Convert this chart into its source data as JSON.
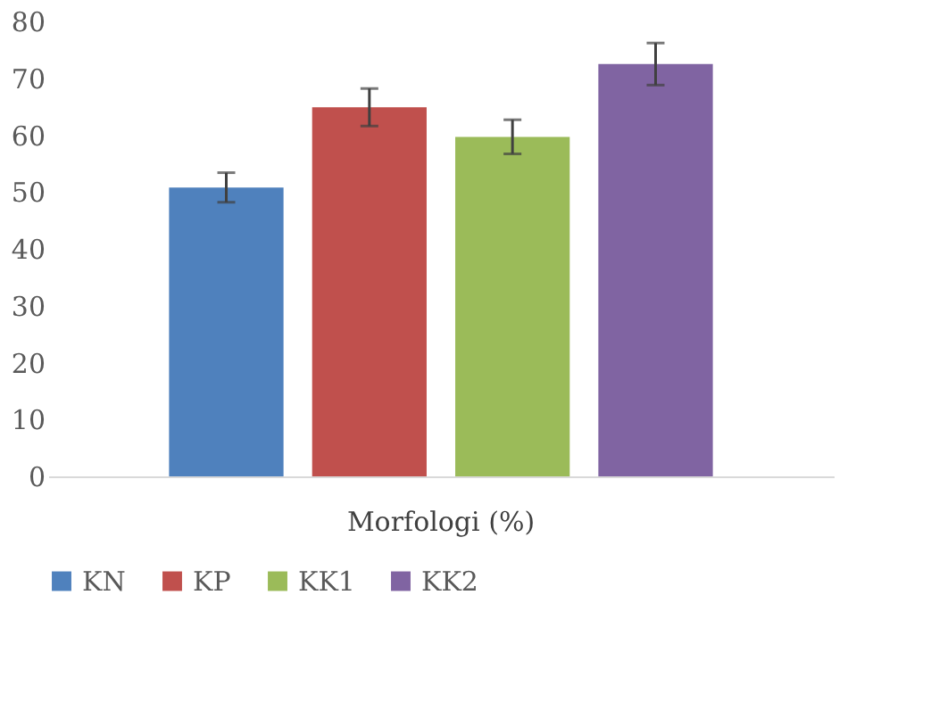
{
  "chart_data": {
    "type": "bar",
    "categories": [
      "Morfologi (%)"
    ],
    "series": [
      {
        "name": "KN",
        "color": "#4f81bd",
        "values": [
          50.8
        ],
        "errors": [
          2.6
        ]
      },
      {
        "name": "KP",
        "color": "#c0504d",
        "values": [
          64.9
        ],
        "errors": [
          3.3
        ]
      },
      {
        "name": "KK1",
        "color": "#9bbb59",
        "values": [
          59.7
        ],
        "errors": [
          3.0
        ]
      },
      {
        "name": "KK2",
        "color": "#8064a2",
        "values": [
          72.5
        ],
        "errors": [
          3.7
        ]
      }
    ],
    "ylim": [
      0,
      80
    ],
    "yticks": [
      0,
      10,
      20,
      30,
      40,
      50,
      60,
      70,
      80
    ],
    "grid": false,
    "legend": "bottom"
  }
}
